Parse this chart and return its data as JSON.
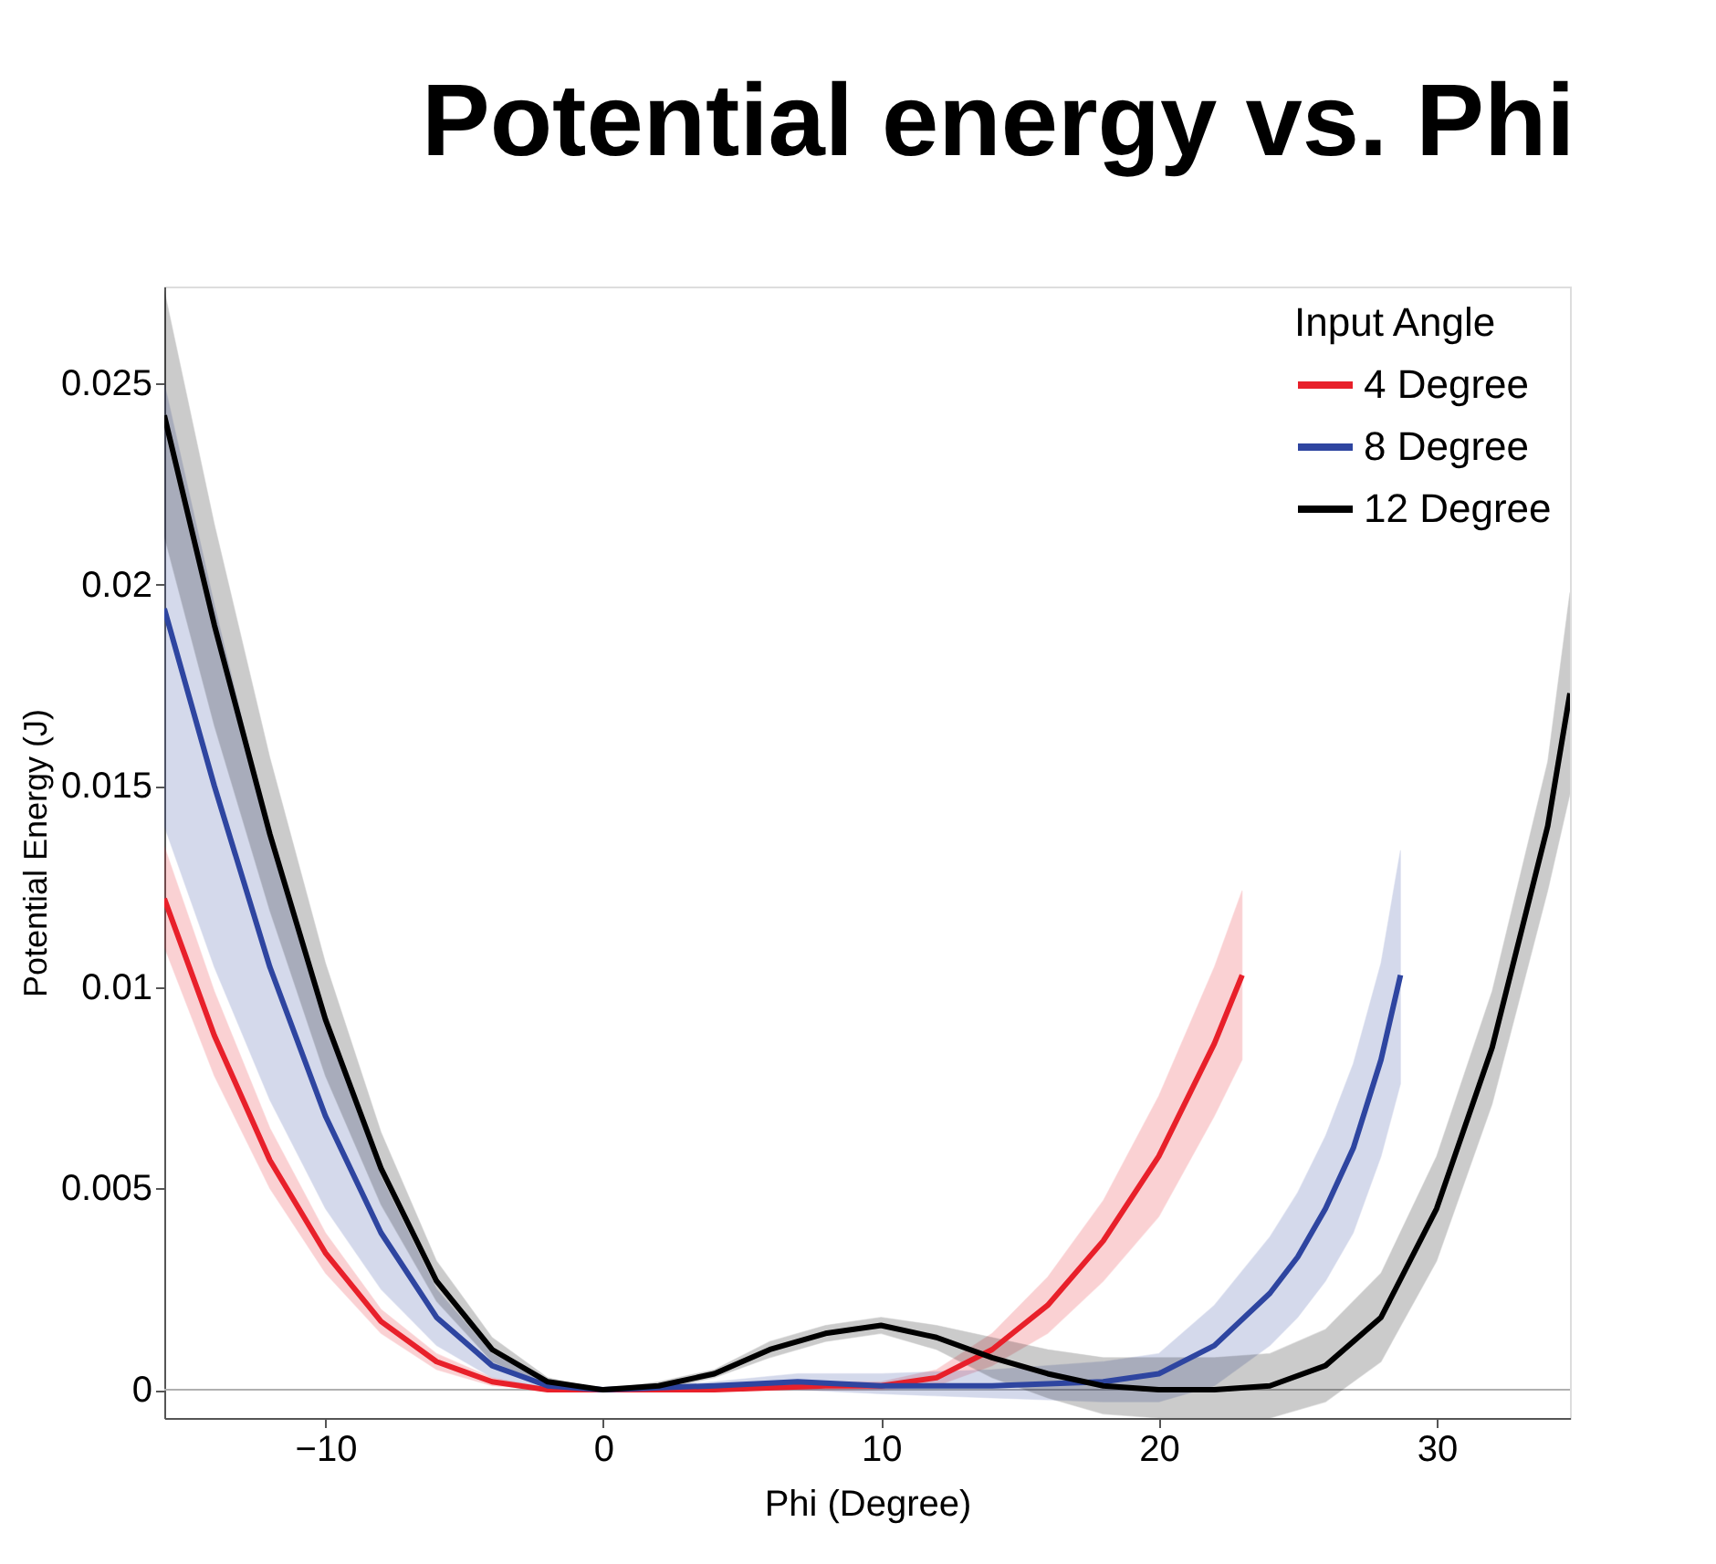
{
  "chart_data": {
    "type": "line",
    "title": "Potential energy vs. Phi",
    "xlabel": "Phi (Degree)",
    "ylabel": "Potential Energy (J)",
    "legend_title": "Input Angle",
    "legend": "top right",
    "grid": false,
    "marker": "none",
    "line_style": "solid",
    "xlim": [
      -15.8,
      34.8
    ],
    "xticks": [
      -10,
      0,
      10,
      20,
      30
    ],
    "ylim": [
      -0.0007,
      0.0274
    ],
    "yticks": [
      0,
      0.005,
      0.01,
      0.015,
      0.02,
      0.025
    ],
    "ref_lines": [
      {
        "axis": "y",
        "value": 0,
        "label": null,
        "color": "#b0b0b0"
      }
    ],
    "series": [
      {
        "name": "4 Degree",
        "color": "#e8202a",
        "x": [
          -15.8,
          -14,
          -12,
          -10,
          -8,
          -6,
          -4,
          -2,
          0,
          4,
          8,
          10,
          12,
          14,
          16,
          18,
          20,
          22,
          23
        ],
        "values": [
          0.0122,
          0.0088,
          0.0057,
          0.0034,
          0.0017,
          0.0007,
          0.0002,
          0,
          0,
          0,
          0.0001,
          0.0001,
          0.0003,
          0.001,
          0.0021,
          0.0037,
          0.0058,
          0.0086,
          0.0103
        ],
        "lower": [
          0.011,
          0.0078,
          0.005,
          0.0029,
          0.0014,
          0.0005,
          0.0001,
          0,
          0,
          0,
          0,
          0,
          0.0001,
          0.0006,
          0.0014,
          0.0027,
          0.0043,
          0.0068,
          0.0082
        ],
        "upper": [
          0.0135,
          0.0099,
          0.0065,
          0.0039,
          0.002,
          0.0009,
          0.0003,
          5e-05,
          0,
          0.0001,
          0.0002,
          0.0002,
          0.0005,
          0.0014,
          0.0028,
          0.0047,
          0.0073,
          0.0105,
          0.0124
        ]
      },
      {
        "name": "8 Degree",
        "color": "#2e45a0",
        "x": [
          -15.8,
          -14,
          -12,
          -10,
          -8,
          -6,
          -4,
          -2,
          0,
          4,
          7,
          10,
          14,
          18,
          20,
          22,
          24,
          25,
          26,
          27,
          28,
          28.7
        ],
        "values": [
          0.0194,
          0.015,
          0.0105,
          0.0068,
          0.0039,
          0.0018,
          0.0006,
          0.0001,
          0,
          0.0001,
          0.0002,
          0.0001,
          0.0001,
          0.0002,
          0.0004,
          0.0011,
          0.0024,
          0.0033,
          0.0045,
          0.006,
          0.0082,
          0.0103
        ],
        "lower": [
          0.014,
          0.0105,
          0.0072,
          0.0045,
          0.0025,
          0.0011,
          0.0003,
          0,
          0,
          0,
          0,
          -0.0001,
          -0.0002,
          -0.0003,
          -0.0003,
          0.0001,
          0.0011,
          0.0018,
          0.0027,
          0.0039,
          0.0058,
          0.0076
        ],
        "upper": [
          0.025,
          0.0195,
          0.0138,
          0.0091,
          0.0053,
          0.0025,
          0.0009,
          0.0002,
          0,
          0.0002,
          0.0004,
          0.0004,
          0.0005,
          0.0007,
          0.0009,
          0.0021,
          0.0038,
          0.0049,
          0.0063,
          0.0081,
          0.0106,
          0.0134
        ]
      },
      {
        "name": "12 Degree",
        "color": "#000000",
        "x": [
          -15.8,
          -14,
          -12,
          -10,
          -8,
          -6,
          -4,
          -2,
          0,
          2,
          4,
          6,
          8,
          10,
          12,
          14,
          16,
          18,
          20,
          22,
          24,
          26,
          28,
          30,
          32,
          34,
          34.8
        ],
        "values": [
          0.0242,
          0.019,
          0.0138,
          0.0092,
          0.0055,
          0.0027,
          0.001,
          0.0002,
          0,
          0.0001,
          0.0004,
          0.001,
          0.0014,
          0.0016,
          0.0013,
          0.0008,
          0.0004,
          0.0001,
          0,
          0,
          0.0001,
          0.0006,
          0.0018,
          0.0045,
          0.0085,
          0.014,
          0.0173
        ],
        "lower": [
          0.0212,
          0.0165,
          0.0119,
          0.0078,
          0.0046,
          0.0022,
          0.0007,
          0.0001,
          0,
          0,
          0.0003,
          0.0008,
          0.0012,
          0.0014,
          0.001,
          0.0003,
          -0.0002,
          -0.0006,
          -0.0007,
          -0.0007,
          -0.0007,
          -0.0003,
          0.0007,
          0.0032,
          0.0071,
          0.0124,
          0.0148
        ],
        "upper": [
          0.0273,
          0.0215,
          0.0157,
          0.0106,
          0.0064,
          0.0032,
          0.0013,
          0.0003,
          0,
          0.0002,
          0.0005,
          0.0012,
          0.0016,
          0.0018,
          0.0016,
          0.0013,
          0.001,
          0.0008,
          0.0008,
          0.0008,
          0.0009,
          0.0015,
          0.0029,
          0.0058,
          0.0099,
          0.0156,
          0.0198
        ]
      }
    ]
  }
}
